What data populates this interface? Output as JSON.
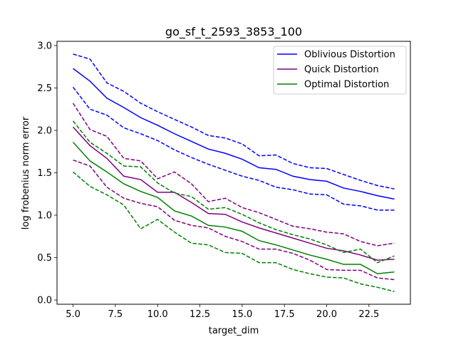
{
  "chart_data": {
    "type": "line",
    "title": "go_sf_t_2593_3853_100",
    "xlabel": "target_dim",
    "ylabel": "log frobenius norm error",
    "xlim": [
      4.05,
      24.95
    ],
    "ylim": [
      -0.05,
      3.05
    ],
    "xticks": [
      "5.0",
      "7.5",
      "10.0",
      "12.5",
      "15.0",
      "17.5",
      "20.0",
      "22.5"
    ],
    "xtick_values": [
      5.0,
      7.5,
      10.0,
      12.5,
      15.0,
      17.5,
      20.0,
      22.5
    ],
    "yticks": [
      "0.0",
      "0.5",
      "1.0",
      "1.5",
      "2.0",
      "2.5",
      "3.0"
    ],
    "ytick_values": [
      0.0,
      0.5,
      1.0,
      1.5,
      2.0,
      2.5,
      3.0
    ],
    "grid": false,
    "legend_position": "top-right",
    "x": [
      5,
      6,
      7,
      8,
      9,
      10,
      11,
      12,
      13,
      14,
      15,
      16,
      17,
      18,
      19,
      20,
      21,
      22,
      23,
      24
    ],
    "series": [
      {
        "name": "Oblivious Distortion",
        "color": "#0000ff",
        "values": [
          2.73,
          2.58,
          2.38,
          2.27,
          2.15,
          2.06,
          1.96,
          1.87,
          1.78,
          1.73,
          1.66,
          1.56,
          1.54,
          1.46,
          1.42,
          1.4,
          1.32,
          1.28,
          1.23,
          1.19
        ],
        "upper": [
          2.9,
          2.84,
          2.56,
          2.46,
          2.32,
          2.22,
          2.13,
          2.04,
          1.94,
          1.91,
          1.84,
          1.7,
          1.71,
          1.61,
          1.56,
          1.55,
          1.48,
          1.41,
          1.35,
          1.31
        ],
        "lower": [
          2.51,
          2.25,
          2.18,
          2.03,
          1.96,
          1.88,
          1.77,
          1.68,
          1.6,
          1.53,
          1.46,
          1.41,
          1.33,
          1.3,
          1.25,
          1.24,
          1.13,
          1.11,
          1.06,
          1.06
        ]
      },
      {
        "name": "Quick Distortion",
        "color": "#800080",
        "values": [
          2.04,
          1.82,
          1.67,
          1.46,
          1.42,
          1.27,
          1.27,
          1.15,
          1.02,
          1.01,
          0.92,
          0.85,
          0.79,
          0.73,
          0.67,
          0.61,
          0.58,
          0.53,
          0.47,
          0.48
        ],
        "upper": [
          2.32,
          2.01,
          1.93,
          1.67,
          1.64,
          1.43,
          1.51,
          1.37,
          1.16,
          1.2,
          1.09,
          1.03,
          0.95,
          0.87,
          0.84,
          0.8,
          0.78,
          0.69,
          0.64,
          0.67
        ],
        "lower": [
          1.65,
          1.58,
          1.33,
          1.2,
          1.14,
          1.1,
          0.94,
          0.88,
          0.85,
          0.75,
          0.69,
          0.6,
          0.6,
          0.55,
          0.47,
          0.36,
          0.35,
          0.35,
          0.26,
          0.24
        ]
      },
      {
        "name": "Optimal Distortion",
        "color": "#008000",
        "values": [
          1.86,
          1.64,
          1.51,
          1.37,
          1.28,
          1.21,
          1.05,
          0.99,
          0.88,
          0.86,
          0.81,
          0.7,
          0.65,
          0.59,
          0.53,
          0.48,
          0.42,
          0.42,
          0.31,
          0.33
        ],
        "upper": [
          2.11,
          1.86,
          1.73,
          1.58,
          1.57,
          1.38,
          1.26,
          1.22,
          1.07,
          1.09,
          1.01,
          0.91,
          0.83,
          0.77,
          0.72,
          0.65,
          0.56,
          0.6,
          0.44,
          0.52
        ],
        "lower": [
          1.51,
          1.34,
          1.24,
          1.12,
          0.84,
          0.95,
          0.8,
          0.67,
          0.65,
          0.56,
          0.55,
          0.44,
          0.44,
          0.36,
          0.31,
          0.27,
          0.26,
          0.19,
          0.15,
          0.1
        ]
      }
    ]
  }
}
